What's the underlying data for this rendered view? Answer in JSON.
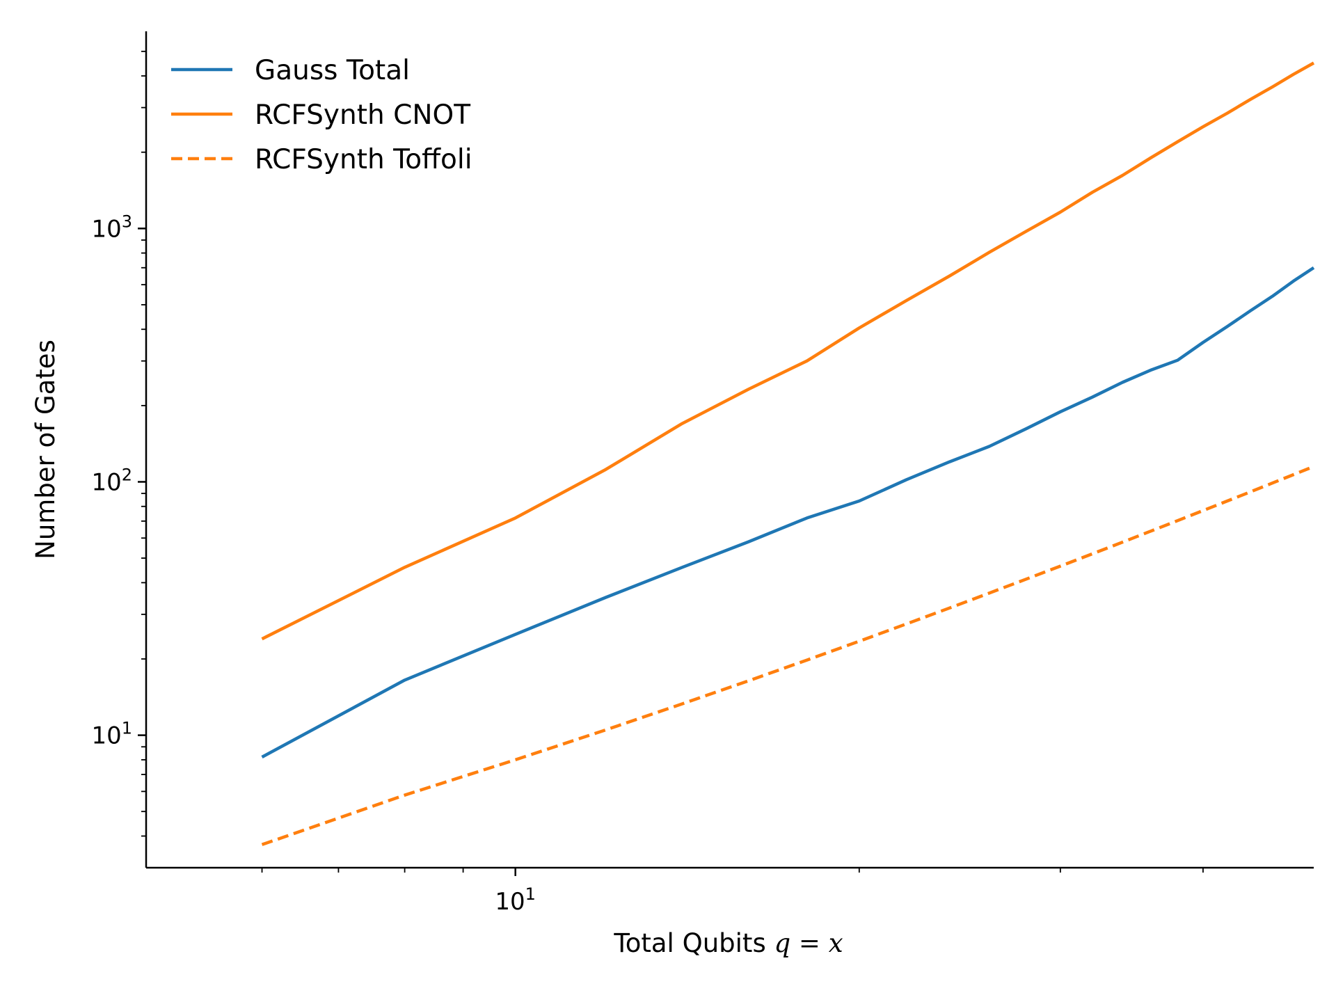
{
  "chart_data": {
    "type": "line",
    "xlabel_prefix": "Total Qubits ",
    "xlabel_math": "q = x",
    "ylabel": "Number of Gates",
    "xscale": "log",
    "yscale": "log",
    "xlim": [
      4.75,
      50
    ],
    "ylim": [
      3,
      6000
    ],
    "x_major_ticks": [
      {
        "value": 10,
        "base": "10",
        "exp": "1"
      }
    ],
    "x_minor_ticks": [
      6,
      7,
      8,
      9,
      20,
      30,
      40
    ],
    "y_major_ticks": [
      {
        "value": 10,
        "base": "10",
        "exp": "1"
      },
      {
        "value": 100,
        "base": "10",
        "exp": "2"
      },
      {
        "value": 1000,
        "base": "10",
        "exp": "3"
      }
    ],
    "y_minor_ticks": [
      4,
      5,
      6,
      7,
      8,
      9,
      20,
      30,
      40,
      50,
      60,
      70,
      80,
      90,
      200,
      300,
      400,
      500,
      600,
      700,
      800,
      900,
      2000,
      3000,
      4000,
      5000
    ],
    "grid": false,
    "legend_position": "top-left",
    "series": [
      {
        "name": "Gauss Total",
        "color": "#1f77b4",
        "dash": "solid",
        "x": [
          6,
          8,
          10,
          12,
          14,
          16,
          18,
          20,
          22,
          24,
          26,
          28,
          30,
          32,
          34,
          36,
          38,
          40,
          42,
          44,
          46,
          48,
          50
        ],
        "y": [
          8.2,
          16.5,
          25,
          35,
          46,
          58,
          72,
          84,
          102,
          120,
          138,
          162,
          189,
          216,
          247,
          276,
          302,
          355,
          410,
          473,
          540,
          620,
          700
        ]
      },
      {
        "name": "RCFSynth CNOT",
        "color": "#ff7f0e",
        "dash": "solid",
        "x": [
          6,
          8,
          10,
          12,
          14,
          16,
          18,
          20,
          22,
          24,
          26,
          28,
          30,
          32,
          34,
          36,
          38,
          40,
          42,
          44,
          46,
          48,
          50
        ],
        "y": [
          24,
          46,
          72,
          112,
          170,
          232,
          300,
          405,
          520,
          650,
          805,
          975,
          1160,
          1390,
          1620,
          1900,
          2200,
          2520,
          2850,
          3230,
          3620,
          4060,
          4500
        ]
      },
      {
        "name": "RCFSynth Toffoli",
        "color": "#ff7f0e",
        "dash": "dashed",
        "x": [
          6,
          8,
          10,
          12,
          14,
          16,
          18,
          20,
          22,
          24,
          26,
          28,
          30,
          32,
          34,
          36,
          38,
          40,
          42,
          44,
          46,
          48,
          50
        ],
        "y": [
          3.7,
          5.8,
          8,
          10.5,
          13.3,
          16.4,
          19.8,
          23.5,
          27.5,
          31.8,
          36.4,
          41.3,
          46.5,
          52,
          57.8,
          63.9,
          70.3,
          77,
          84,
          91.3,
          98.9,
          106.8,
          115
        ]
      }
    ]
  }
}
